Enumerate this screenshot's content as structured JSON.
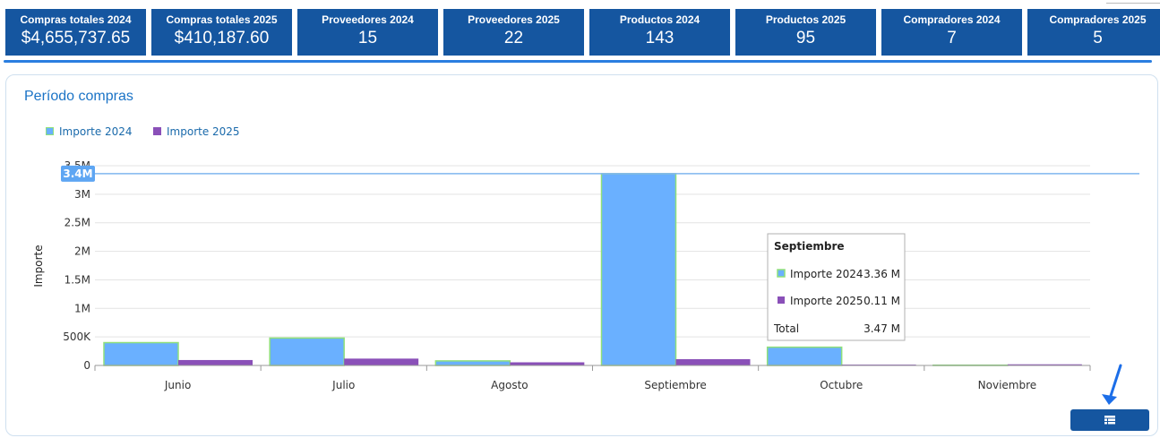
{
  "kpis": [
    {
      "label": "Compras totales 2024",
      "value": "$4,655,737.65"
    },
    {
      "label": "Compras totales 2025",
      "value": "$410,187.60"
    },
    {
      "label": "Proveedores 2024",
      "value": "15"
    },
    {
      "label": "Proveedores 2025",
      "value": "22"
    },
    {
      "label": "Productos 2024",
      "value": "143"
    },
    {
      "label": "Productos 2025",
      "value": "95"
    },
    {
      "label": "Compradores 2024",
      "value": "7"
    },
    {
      "label": "Compradores 2025",
      "value": "5"
    }
  ],
  "panel": {
    "title": "Período compras"
  },
  "legend": [
    "Importe 2024",
    "Importe 2025"
  ],
  "colors": {
    "kpi_bg": "#1556a0",
    "series_2024": "#6ab0ff",
    "series_2024_border": "#8fe07a",
    "series_2025": "#8a50b8",
    "accent": "#2a7ee0"
  },
  "chart_data": {
    "type": "bar",
    "categories": [
      "Junio",
      "Julio",
      "Agosto",
      "Septiembre",
      "Octubre",
      "Noviembre"
    ],
    "series": [
      {
        "name": "Importe 2024",
        "values": [
          400000,
          480000,
          80000,
          3360000,
          320000,
          5000
        ]
      },
      {
        "name": "Importe 2025",
        "values": [
          95000,
          120000,
          55000,
          110000,
          15000,
          20000
        ]
      }
    ],
    "ylabel": "Importe",
    "ytick_labels": [
      "0",
      "500K",
      "1M",
      "1.5M",
      "2M",
      "2.5M",
      "3M",
      "3.5M"
    ],
    "yticks": [
      0,
      500000,
      1000000,
      1500000,
      2000000,
      2500000,
      3000000,
      3500000
    ],
    "ylim": [
      0,
      3500000
    ],
    "crosshair": {
      "value": 3360000,
      "label": "3.4M"
    },
    "grid": true,
    "legend_position": "top-left"
  },
  "tooltip": {
    "title": "Septiembre",
    "rows": [
      {
        "label": "Importe 2024",
        "value": "3.36 M"
      },
      {
        "label": "Importe 2025",
        "value": "0.11 M"
      }
    ],
    "total_label": "Total",
    "total_value": "3.47 M"
  },
  "icons": {
    "table_button": "table-icon",
    "pointer": "arrow-pointer-icon"
  }
}
